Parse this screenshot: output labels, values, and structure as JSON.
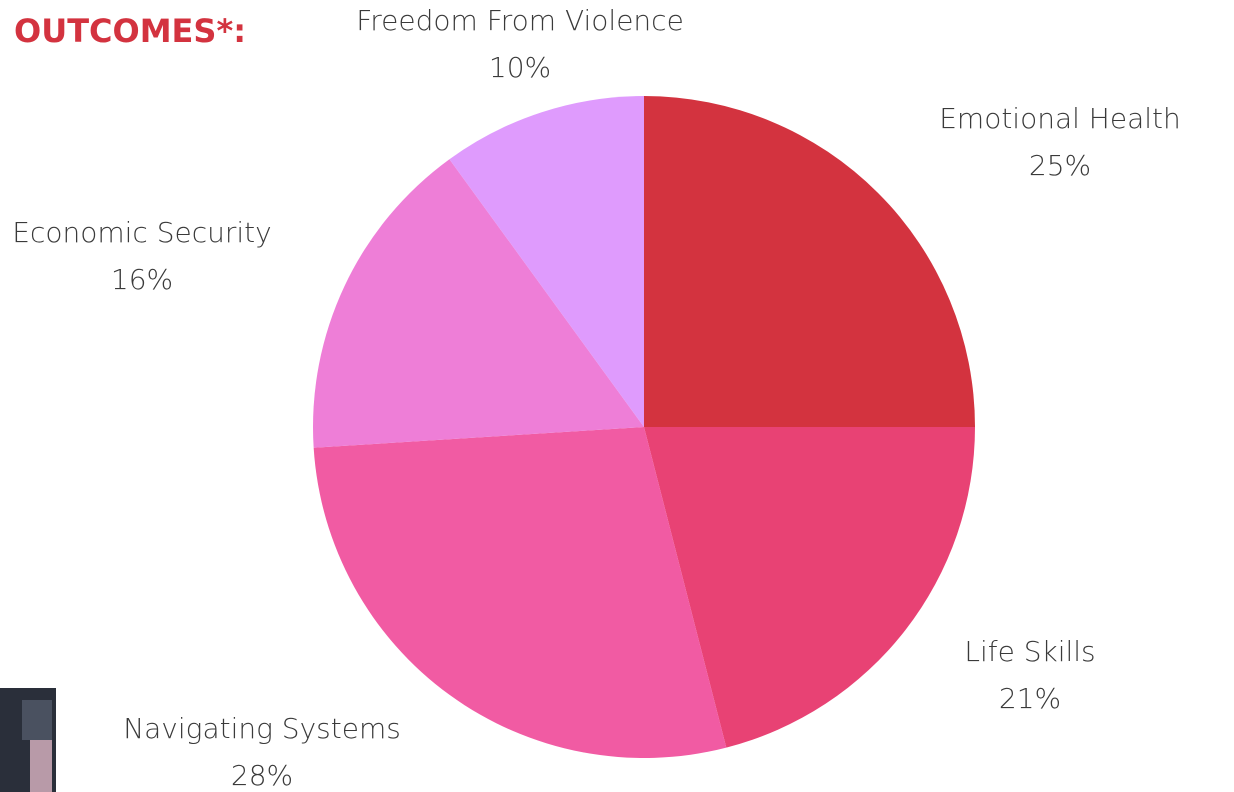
{
  "chart_data": {
    "type": "pie",
    "title": "OUTCOMES*:",
    "categories": [
      "Emotional Health",
      "Life Skills",
      "Navigating Systems",
      "Economic Security",
      "Freedom From Violence"
    ],
    "values": [
      25,
      21,
      28,
      16,
      10
    ],
    "value_labels": [
      "25%",
      "21%",
      "28%",
      "16%",
      "10%"
    ],
    "colors": [
      "#d3333f",
      "#e84274",
      "#f15ba3",
      "#ee7ed7",
      "#df9bfd"
    ]
  }
}
